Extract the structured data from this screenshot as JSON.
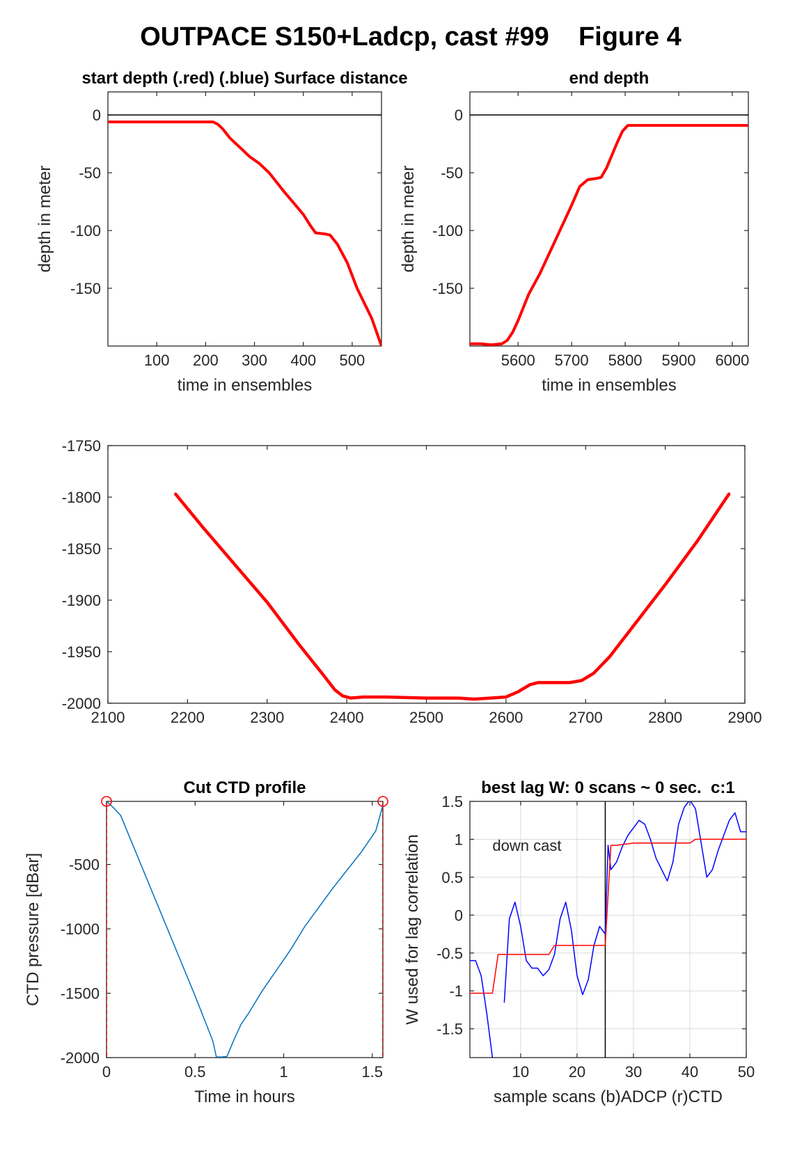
{
  "figure_title": "OUTPACE S150+Ladcp, cast #99    Figure 4",
  "colors": {
    "red": "#ff0000",
    "blue": "#0000ff",
    "ctd_line": "#0072bd",
    "axis": "#262626",
    "grid": "#dcdcdc"
  },
  "chart_data": [
    {
      "id": "start",
      "type": "line",
      "title": "start depth (.red) (.blue) Surface distance",
      "xlabel": "time in ensembles",
      "ylabel": "depth in meter",
      "xlim": [
        0,
        560
      ],
      "ylim": [
        -200,
        20
      ],
      "xticks": [
        100,
        200,
        300,
        400,
        500
      ],
      "yticks": [
        0,
        -50,
        -100,
        -150
      ],
      "hline": 0,
      "series": [
        {
          "color": "#ff0000",
          "x": [
            0,
            100,
            200,
            215,
            225,
            235,
            250,
            270,
            290,
            310,
            330,
            345,
            360,
            380,
            400,
            415,
            425,
            445,
            455,
            470,
            490,
            510,
            540,
            560
          ],
          "y": [
            -6,
            -6,
            -6,
            -6,
            -8,
            -12,
            -20,
            -28,
            -36,
            -42,
            -50,
            -58,
            -66,
            -76,
            -86,
            -96,
            -102,
            -103,
            -104,
            -112,
            -128,
            -150,
            -176,
            -200
          ]
        }
      ]
    },
    {
      "id": "end",
      "type": "line",
      "title": "end depth",
      "xlabel": "time in ensembles",
      "ylabel": "depth in meter",
      "xlim": [
        5510,
        6030
      ],
      "ylim": [
        -200,
        20
      ],
      "xticks": [
        5600,
        5700,
        5800,
        5900,
        6000
      ],
      "yticks": [
        0,
        -50,
        -100,
        -150
      ],
      "hline": 0,
      "series": [
        {
          "color": "#ff0000",
          "x": [
            5510,
            5530,
            5550,
            5570,
            5580,
            5590,
            5600,
            5620,
            5640,
            5660,
            5680,
            5700,
            5715,
            5730,
            5745,
            5755,
            5765,
            5785,
            5795,
            5805,
            5850,
            5950,
            6030
          ],
          "y": [
            -198,
            -198,
            -199,
            -198,
            -195,
            -188,
            -178,
            -155,
            -138,
            -118,
            -98,
            -78,
            -62,
            -56,
            -55,
            -54,
            -46,
            -24,
            -14,
            -9,
            -9,
            -9,
            -9
          ]
        }
      ]
    },
    {
      "id": "bottom",
      "type": "line",
      "title": "",
      "xlabel": "",
      "ylabel": "",
      "xlim": [
        2100,
        2900
      ],
      "ylim": [
        -2000,
        -1750
      ],
      "xticks": [
        2100,
        2200,
        2300,
        2400,
        2500,
        2600,
        2700,
        2800,
        2900
      ],
      "yticks": [
        -1750,
        -1800,
        -1850,
        -1900,
        -1950,
        -2000
      ],
      "series": [
        {
          "color": "#ff0000",
          "x": [
            2185,
            2220,
            2260,
            2300,
            2340,
            2370,
            2385,
            2395,
            2405,
            2420,
            2450,
            2500,
            2540,
            2560,
            2580,
            2600,
            2615,
            2630,
            2640,
            2660,
            2680,
            2695,
            2710,
            2730,
            2760,
            2800,
            2840,
            2880
          ],
          "y": [
            -1797,
            -1830,
            -1866,
            -1902,
            -1943,
            -1972,
            -1987,
            -1993,
            -1995,
            -1994,
            -1994,
            -1995,
            -1995,
            -1996,
            -1995,
            -1994,
            -1989,
            -1982,
            -1980,
            -1980,
            -1980,
            -1978,
            -1971,
            -1955,
            -1925,
            -1885,
            -1843,
            -1797
          ]
        }
      ]
    },
    {
      "id": "ctd",
      "type": "line",
      "title": "Cut CTD profile",
      "xlabel": "Time in hours",
      "ylabel": "CTD pressure [dBar]",
      "xlim": [
        0,
        1.56
      ],
      "ylim": [
        -2000,
        -10
      ],
      "xticks": [
        0,
        0.5,
        1,
        1.5
      ],
      "xtick_labels": [
        "0",
        "0.5",
        "1",
        "1.5"
      ],
      "yticks": [
        -500,
        -1000,
        -1500,
        -2000
      ],
      "vlines": [
        0,
        1.56
      ],
      "markers": [
        {
          "x": 0,
          "y": -10
        },
        {
          "x": 1.56,
          "y": -10
        }
      ],
      "series": [
        {
          "color": "#0072bd",
          "x": [
            0,
            0.04,
            0.08,
            0.2,
            0.35,
            0.5,
            0.6,
            0.62,
            0.65,
            0.68,
            0.72,
            0.76,
            0.8,
            0.88,
            0.96,
            1.04,
            1.12,
            1.2,
            1.28,
            1.36,
            1.44,
            1.52,
            1.56
          ],
          "y": [
            -10,
            -60,
            -120,
            -520,
            -1020,
            -1520,
            -1870,
            -1995,
            -1995,
            -1990,
            -1860,
            -1740,
            -1660,
            -1480,
            -1320,
            -1160,
            -980,
            -830,
            -680,
            -540,
            -400,
            -240,
            -40
          ]
        }
      ]
    },
    {
      "id": "lag",
      "type": "line",
      "title": "best lag W: 0 scans ~ 0 sec.  c:1",
      "xlabel": "sample scans (b)ADCP (r)CTD",
      "ylabel": "W used for lag correlation",
      "xlim": [
        1,
        50
      ],
      "ylim": [
        -1.88,
        1.5
      ],
      "xticks": [
        10,
        20,
        30,
        40,
        50
      ],
      "yticks": [
        1.5,
        1,
        0.5,
        0,
        -0.5,
        -1,
        -1.5
      ],
      "grid": true,
      "vlines": [
        25
      ],
      "annotation": "down cast",
      "series": [
        {
          "color": "#0000ff",
          "x": [
            1,
            2,
            3,
            4,
            5,
            6,
            7,
            7.1,
            8,
            9,
            10,
            11,
            12,
            13,
            14,
            15,
            16,
            17,
            18,
            19,
            20,
            21,
            22,
            23,
            24,
            25,
            25.5,
            26,
            27,
            28,
            29,
            30,
            31,
            32,
            33,
            34,
            35,
            36,
            37,
            38,
            39,
            40,
            41,
            42,
            43,
            44,
            45,
            46,
            47,
            48,
            49,
            50
          ],
          "y": [
            -0.6,
            -0.6,
            -0.8,
            -1.3,
            -1.88,
            null,
            null,
            -1.15,
            -0.05,
            0.17,
            -0.15,
            -0.6,
            -0.7,
            -0.7,
            -0.8,
            -0.72,
            -0.52,
            -0.05,
            0.17,
            -0.2,
            -0.8,
            -1.05,
            -0.85,
            -0.4,
            -0.15,
            -0.25,
            0.92,
            0.6,
            0.7,
            0.9,
            1.05,
            1.15,
            1.25,
            1.2,
            1.0,
            0.75,
            0.6,
            0.45,
            0.7,
            1.2,
            1.42,
            1.52,
            1.4,
            0.95,
            0.5,
            0.6,
            0.85,
            1.05,
            1.25,
            1.35,
            1.1,
            1.1
          ]
        },
        {
          "color": "#ff0000",
          "x": [
            1,
            5,
            6,
            15,
            16,
            25,
            25.1,
            26,
            27,
            30,
            40,
            41,
            50
          ],
          "y": [
            -1.03,
            -1.03,
            -0.52,
            -0.52,
            -0.4,
            -0.4,
            -0.25,
            0.92,
            0.92,
            0.95,
            0.95,
            1.0,
            1.0
          ]
        }
      ]
    }
  ]
}
